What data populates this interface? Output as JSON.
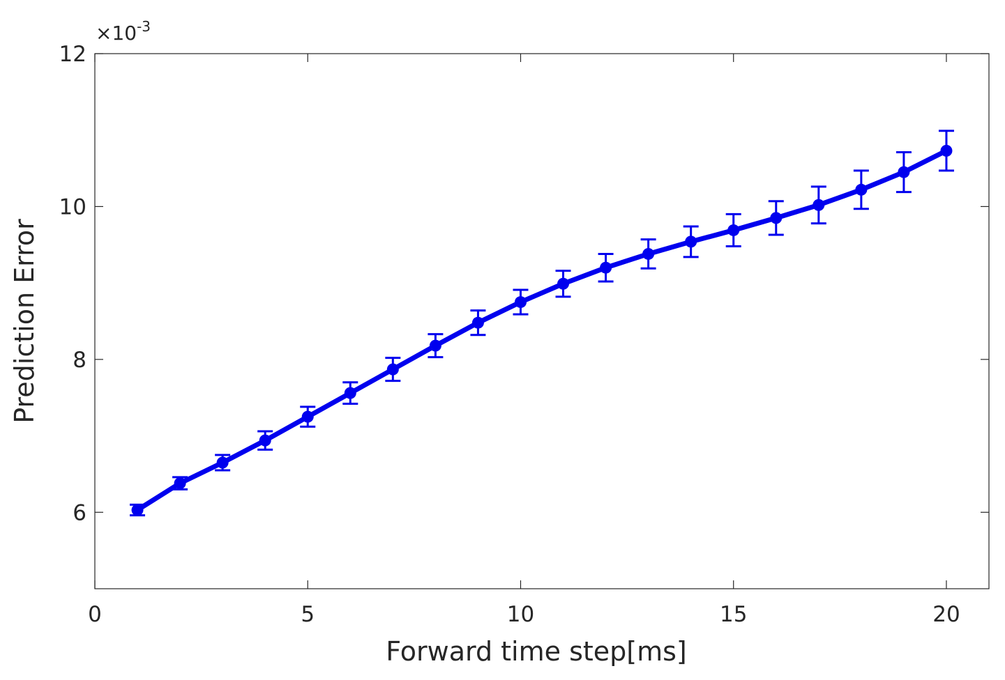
{
  "chart_data": {
    "type": "line",
    "xlabel": "Forward time step[ms]",
    "ylabel": "Prediction Error",
    "y_multiplier_label": {
      "base": "×10",
      "exponent": "-3"
    },
    "xlim": [
      0,
      21
    ],
    "ylim": [
      5,
      12
    ],
    "x_ticks": [
      0,
      5,
      10,
      15,
      20
    ],
    "y_ticks": [
      6,
      8,
      10,
      12
    ],
    "grid": false,
    "x_tick_labels": [
      "0",
      "5",
      "10",
      "15",
      "20"
    ],
    "y_tick_labels": [
      "6",
      "8",
      "10",
      "12"
    ],
    "series_color": "#0000ee",
    "series": [
      {
        "x": [
          1,
          2,
          3,
          4,
          5,
          6,
          7,
          8,
          9,
          10,
          11,
          12,
          13,
          14,
          15,
          16,
          17,
          18,
          19,
          20
        ],
        "y": [
          6.03,
          6.38,
          6.65,
          6.94,
          7.25,
          7.56,
          7.87,
          8.18,
          8.48,
          8.75,
          8.99,
          9.2,
          9.38,
          9.54,
          9.69,
          9.85,
          10.02,
          10.22,
          10.45,
          10.73
        ],
        "err": [
          0.07,
          0.08,
          0.1,
          0.12,
          0.13,
          0.14,
          0.15,
          0.15,
          0.16,
          0.16,
          0.17,
          0.18,
          0.19,
          0.2,
          0.21,
          0.22,
          0.24,
          0.25,
          0.26,
          0.26
        ]
      }
    ]
  }
}
